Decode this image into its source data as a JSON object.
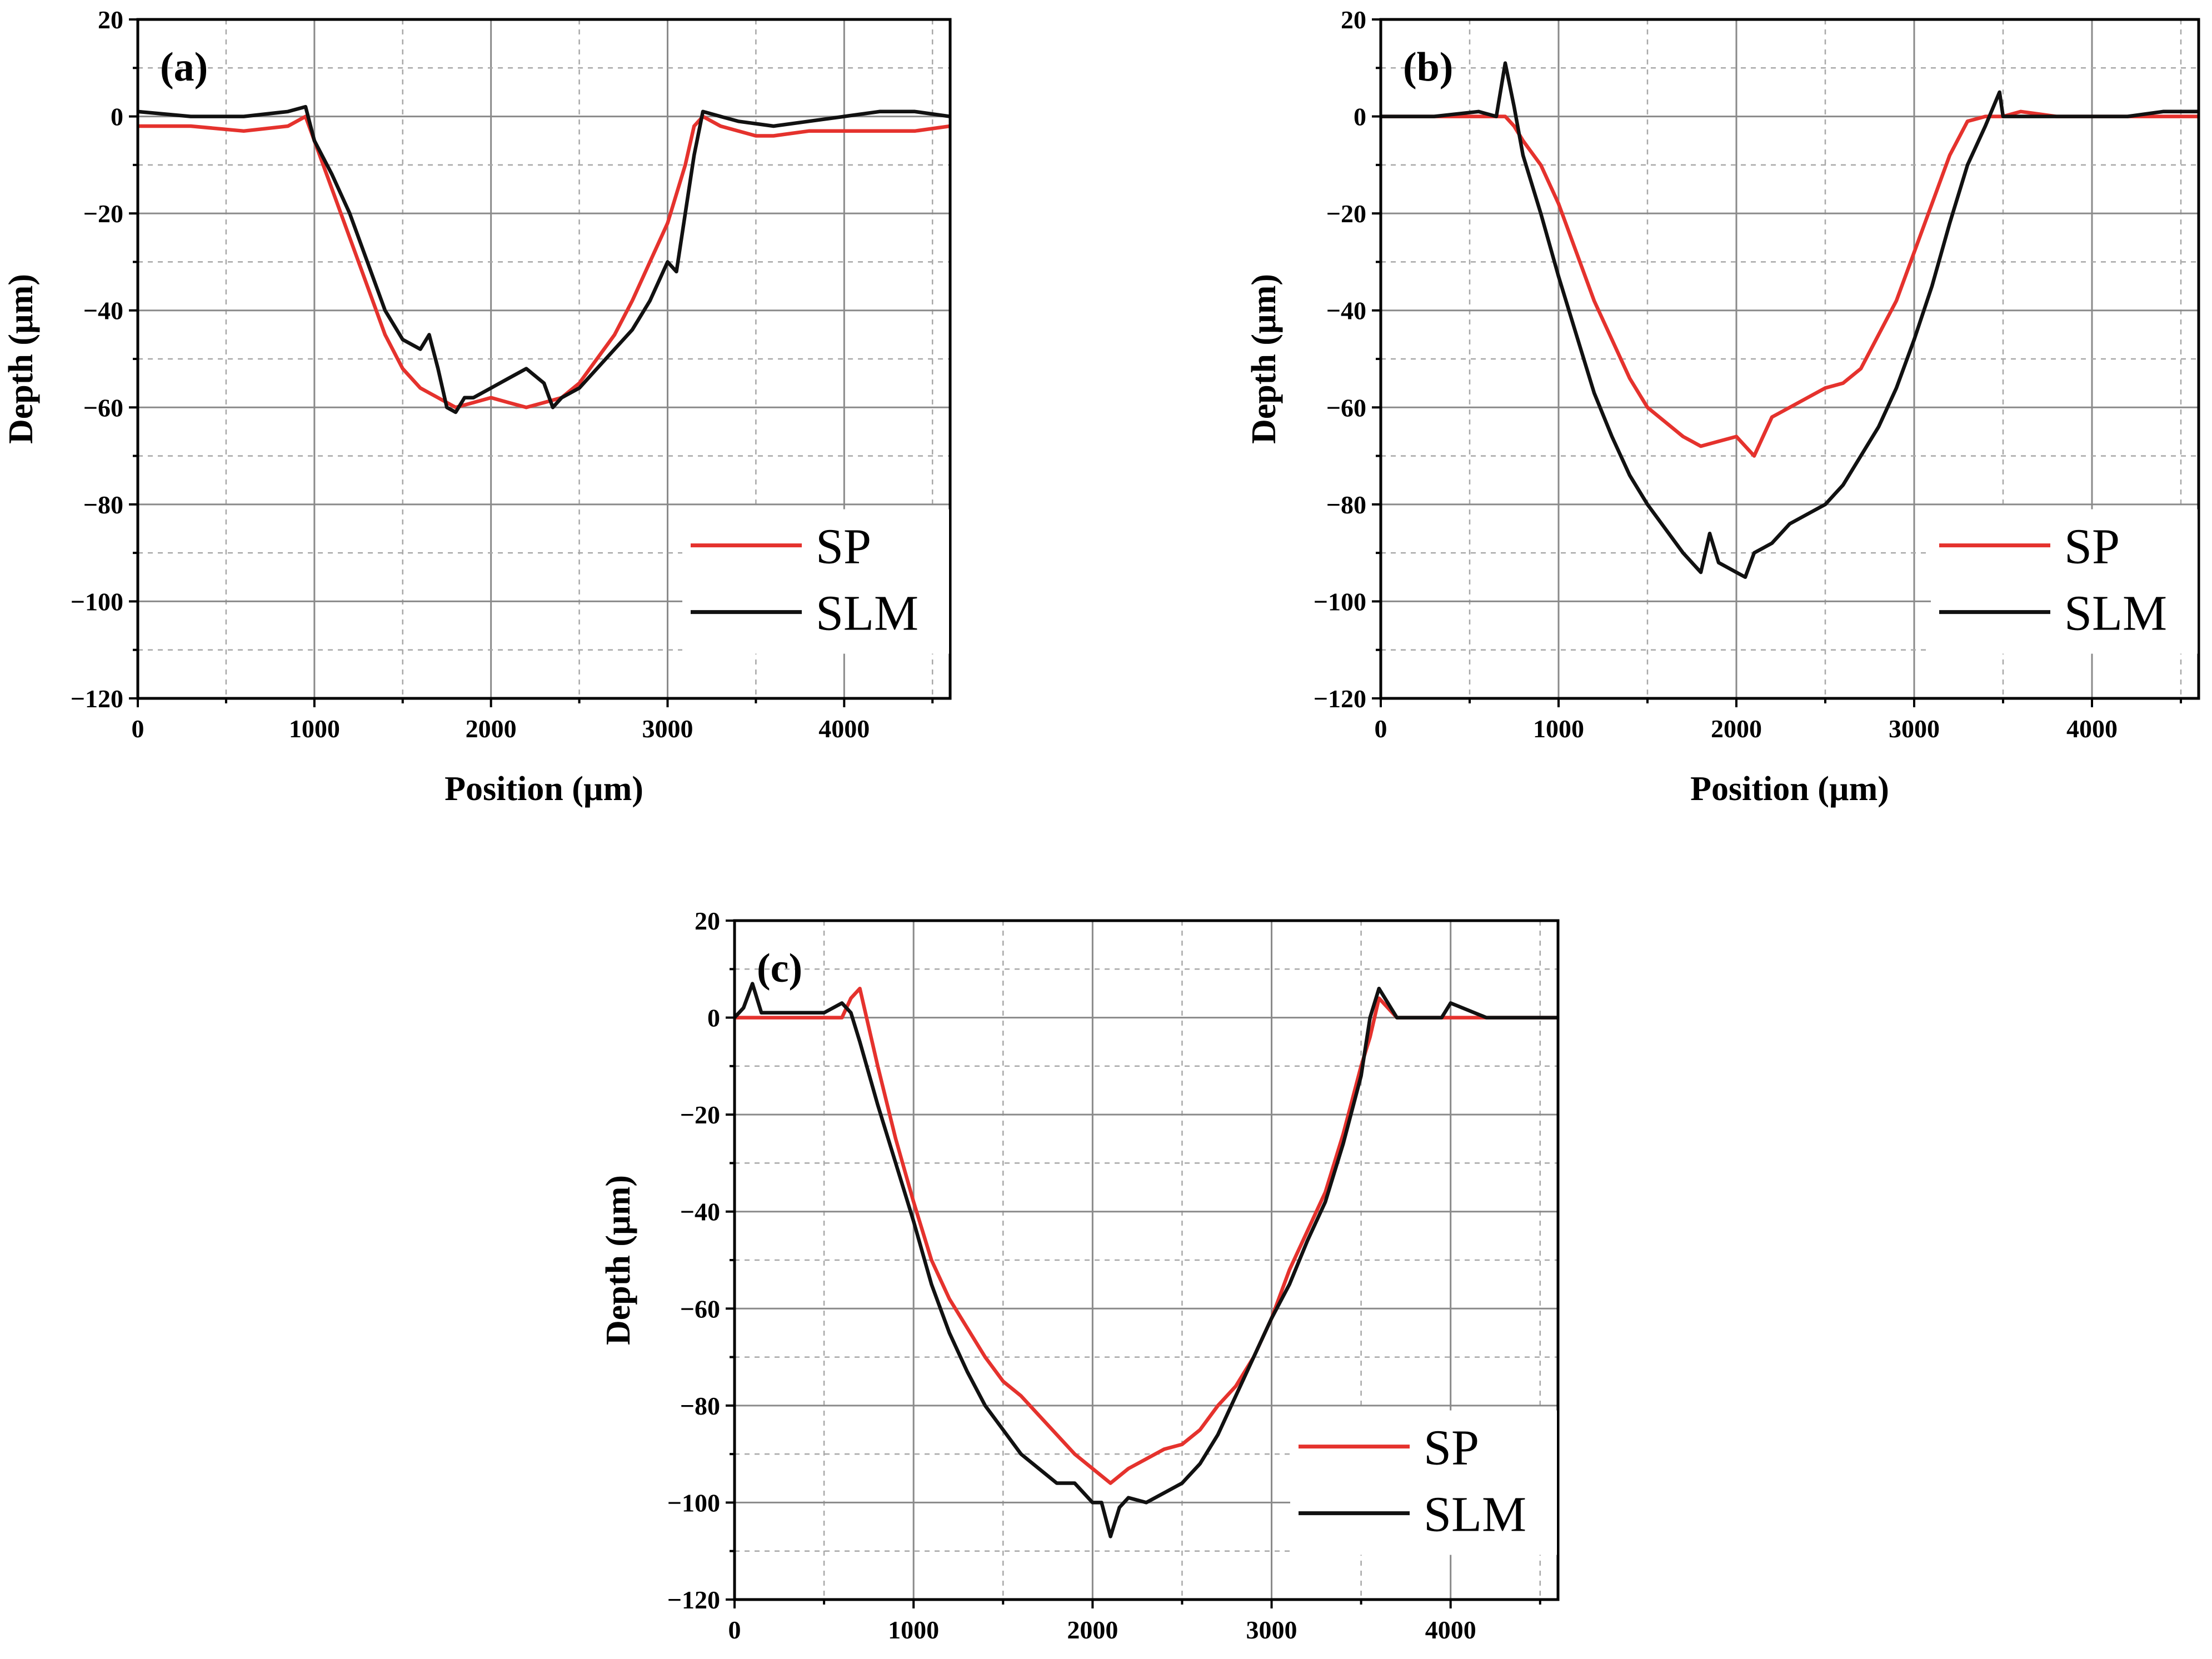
{
  "chart_data": [
    {
      "type": "line",
      "panel_label": "(a)",
      "xlabel": "Position (µm)",
      "ylabel": "Depth (µm)",
      "xlim": [
        0,
        4600
      ],
      "ylim": [
        -120,
        20
      ],
      "xticks": [
        "0",
        "1000",
        "2000",
        "3000",
        "4000"
      ],
      "yticks": [
        "20",
        "0",
        "−20",
        "−40",
        "−60",
        "−80",
        "−100",
        "−120"
      ],
      "grid": true,
      "legend_position": "bottom-right",
      "series": [
        {
          "name": "SP",
          "color": "#e5322d",
          "x": [
            0,
            300,
            600,
            850,
            950,
            1000,
            1100,
            1200,
            1300,
            1400,
            1500,
            1600,
            1700,
            1800,
            1900,
            2000,
            2100,
            2200,
            2300,
            2400,
            2500,
            2600,
            2700,
            2800,
            2900,
            3000,
            3100,
            3150,
            3200,
            3300,
            3400,
            3500,
            3600,
            3800,
            4000,
            4200,
            4400,
            4600
          ],
          "y": [
            -2,
            -2,
            -3,
            -2,
            0,
            -5,
            -15,
            -25,
            -35,
            -45,
            -52,
            -56,
            -58,
            -60,
            -59,
            -58,
            -59,
            -60,
            -59,
            -58,
            -55,
            -50,
            -45,
            -38,
            -30,
            -22,
            -10,
            -2,
            0,
            -2,
            -3,
            -4,
            -4,
            -3,
            -3,
            -3,
            -3,
            -2
          ]
        },
        {
          "name": "SLM",
          "color": "#111111",
          "x": [
            0,
            300,
            600,
            850,
            950,
            1000,
            1100,
            1200,
            1300,
            1400,
            1500,
            1600,
            1650,
            1700,
            1750,
            1800,
            1850,
            1900,
            2000,
            2100,
            2200,
            2300,
            2350,
            2400,
            2500,
            2600,
            2700,
            2800,
            2900,
            3000,
            3050,
            3100,
            3150,
            3200,
            3300,
            3400,
            3600,
            3800,
            4000,
            4200,
            4400,
            4600
          ],
          "y": [
            1,
            0,
            0,
            1,
            2,
            -5,
            -12,
            -20,
            -30,
            -40,
            -46,
            -48,
            -45,
            -52,
            -60,
            -61,
            -58,
            -58,
            -56,
            -54,
            -52,
            -55,
            -60,
            -58,
            -56,
            -52,
            -48,
            -44,
            -38,
            -30,
            -32,
            -20,
            -8,
            1,
            0,
            -1,
            -2,
            -1,
            0,
            1,
            1,
            0
          ]
        }
      ]
    },
    {
      "type": "line",
      "panel_label": "(b)",
      "xlabel": "Position (µm)",
      "ylabel": "Depth (µm)",
      "xlim": [
        0,
        4600
      ],
      "ylim": [
        -120,
        20
      ],
      "xticks": [
        "0",
        "1000",
        "2000",
        "3000",
        "4000"
      ],
      "yticks": [
        "20",
        "0",
        "−20",
        "−40",
        "−60",
        "−80",
        "−100",
        "−120"
      ],
      "grid": true,
      "legend_position": "bottom-right",
      "series": [
        {
          "name": "SP",
          "color": "#e5322d",
          "x": [
            0,
            300,
            600,
            700,
            750,
            800,
            900,
            1000,
            1100,
            1200,
            1300,
            1400,
            1500,
            1600,
            1700,
            1800,
            1900,
            2000,
            2100,
            2200,
            2300,
            2400,
            2500,
            2600,
            2700,
            2800,
            2900,
            3000,
            3100,
            3200,
            3300,
            3400,
            3500,
            3600,
            3800,
            4000,
            4200,
            4400,
            4600
          ],
          "y": [
            0,
            0,
            0,
            0,
            -2,
            -5,
            -10,
            -18,
            -28,
            -38,
            -46,
            -54,
            -60,
            -63,
            -66,
            -68,
            -67,
            -66,
            -70,
            -62,
            -60,
            -58,
            -56,
            -55,
            -52,
            -45,
            -38,
            -28,
            -18,
            -8,
            -1,
            0,
            0,
            1,
            0,
            0,
            0,
            0,
            0
          ]
        },
        {
          "name": "SLM",
          "color": "#111111",
          "x": [
            0,
            300,
            550,
            650,
            700,
            750,
            800,
            900,
            1000,
            1100,
            1200,
            1300,
            1400,
            1500,
            1600,
            1700,
            1800,
            1850,
            1900,
            2000,
            2050,
            2100,
            2200,
            2300,
            2400,
            2500,
            2600,
            2700,
            2800,
            2900,
            3000,
            3100,
            3200,
            3300,
            3400,
            3480,
            3500,
            3600,
            3800,
            4000,
            4200,
            4400,
            4600
          ],
          "y": [
            0,
            0,
            1,
            0,
            11,
            2,
            -8,
            -20,
            -33,
            -45,
            -57,
            -66,
            -74,
            -80,
            -85,
            -90,
            -94,
            -86,
            -92,
            -94,
            -95,
            -90,
            -88,
            -84,
            -82,
            -80,
            -76,
            -70,
            -64,
            -56,
            -46,
            -35,
            -22,
            -10,
            -2,
            5,
            0,
            0,
            0,
            0,
            0,
            1,
            1
          ]
        }
      ]
    },
    {
      "type": "line",
      "panel_label": "(c)",
      "xlabel": "Position (µm)",
      "ylabel": "Depth (µm)",
      "xlim": [
        0,
        4600
      ],
      "ylim": [
        -120,
        20
      ],
      "xticks": [
        "0",
        "1000",
        "2000",
        "3000",
        "4000"
      ],
      "yticks": [
        "20",
        "0",
        "−20",
        "−40",
        "−60",
        "−80",
        "−100",
        "−120"
      ],
      "grid": true,
      "legend_position": "bottom-right",
      "series": [
        {
          "name": "SP",
          "color": "#e5322d",
          "x": [
            0,
            300,
            600,
            650,
            700,
            800,
            900,
            1000,
            1100,
            1200,
            1300,
            1400,
            1500,
            1600,
            1700,
            1800,
            1900,
            2000,
            2100,
            2200,
            2300,
            2400,
            2500,
            2600,
            2700,
            2800,
            2900,
            3000,
            3100,
            3200,
            3300,
            3400,
            3500,
            3550,
            3600,
            3700,
            3800,
            4000,
            4200,
            4400,
            4600
          ],
          "y": [
            0,
            0,
            0,
            4,
            6,
            -10,
            -25,
            -38,
            -50,
            -58,
            -64,
            -70,
            -75,
            -78,
            -82,
            -86,
            -90,
            -93,
            -96,
            -93,
            -91,
            -89,
            -88,
            -85,
            -80,
            -76,
            -70,
            -62,
            -52,
            -44,
            -36,
            -24,
            -10,
            -4,
            4,
            0,
            0,
            0,
            0,
            0,
            0
          ]
        },
        {
          "name": "SLM",
          "color": "#111111",
          "x": [
            0,
            50,
            100,
            150,
            300,
            500,
            600,
            650,
            700,
            800,
            900,
            1000,
            1100,
            1200,
            1300,
            1400,
            1500,
            1600,
            1700,
            1800,
            1900,
            2000,
            2050,
            2100,
            2150,
            2200,
            2300,
            2400,
            2500,
            2600,
            2700,
            2800,
            2900,
            3000,
            3100,
            3200,
            3300,
            3400,
            3500,
            3550,
            3600,
            3700,
            3800,
            3950,
            4000,
            4200,
            4400,
            4600
          ],
          "y": [
            0,
            2,
            7,
            1,
            1,
            1,
            3,
            1,
            -5,
            -18,
            -30,
            -42,
            -55,
            -65,
            -73,
            -80,
            -85,
            -90,
            -93,
            -96,
            -96,
            -100,
            -100,
            -107,
            -101,
            -99,
            -100,
            -98,
            -96,
            -92,
            -86,
            -78,
            -70,
            -62,
            -55,
            -46,
            -38,
            -26,
            -12,
            0,
            6,
            0,
            0,
            0,
            3,
            0,
            0,
            0
          ]
        }
      ]
    }
  ]
}
